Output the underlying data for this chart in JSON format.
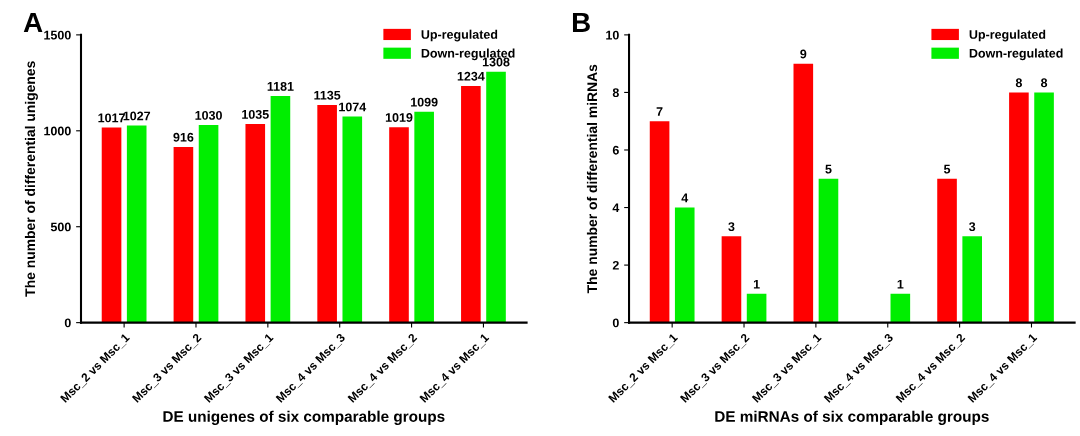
{
  "chart_data": [
    {
      "type": "bar",
      "title": "A",
      "xlabel": "DE unigenes of six comparable groups",
      "ylabel": "The number of differential unigenes",
      "categories": [
        "Msc_2 vs Msc_1",
        "Msc_3 vs Msc_2",
        "Msc_3 vs Msc_1",
        "Msc_4 vs Msc_3",
        "Msc_4 vs Msc_2",
        "Msc_4 vs Msc_1"
      ],
      "series": [
        {
          "name": "Up-regulated",
          "color": "#ff0000",
          "values": [
            1017,
            916,
            1035,
            1135,
            1019,
            1234
          ]
        },
        {
          "name": "Down-regulated",
          "color": "#00ee00",
          "values": [
            1027,
            1030,
            1181,
            1074,
            1099,
            1308
          ]
        }
      ],
      "ylim": [
        0,
        1500
      ],
      "yticks": [
        0,
        500,
        1000,
        1500
      ],
      "data_labels": true,
      "legend": "top right",
      "grid": false
    },
    {
      "type": "bar",
      "title": "B",
      "xlabel": "DE miRNAs of six comparable groups",
      "ylabel": "The number of differential miRNAs",
      "categories": [
        "Msc_2 vs Msc_1",
        "Msc_3 vs Msc_2",
        "Msc_3 vs Msc_1",
        "Msc_4 vs Msc_3",
        "Msc_4 vs Msc_2",
        "Msc_4 vs Msc_1"
      ],
      "series": [
        {
          "name": "Up-regulated",
          "color": "#ff0000",
          "values": [
            7,
            3,
            9,
            null,
            5,
            8
          ]
        },
        {
          "name": "Down-regulated",
          "color": "#00ee00",
          "values": [
            4,
            1,
            5,
            1,
            3,
            8
          ]
        }
      ],
      "ylim": [
        0,
        10
      ],
      "yticks": [
        0,
        2,
        4,
        6,
        8,
        10
      ],
      "data_labels": true,
      "legend": "top right",
      "grid": false
    }
  ]
}
